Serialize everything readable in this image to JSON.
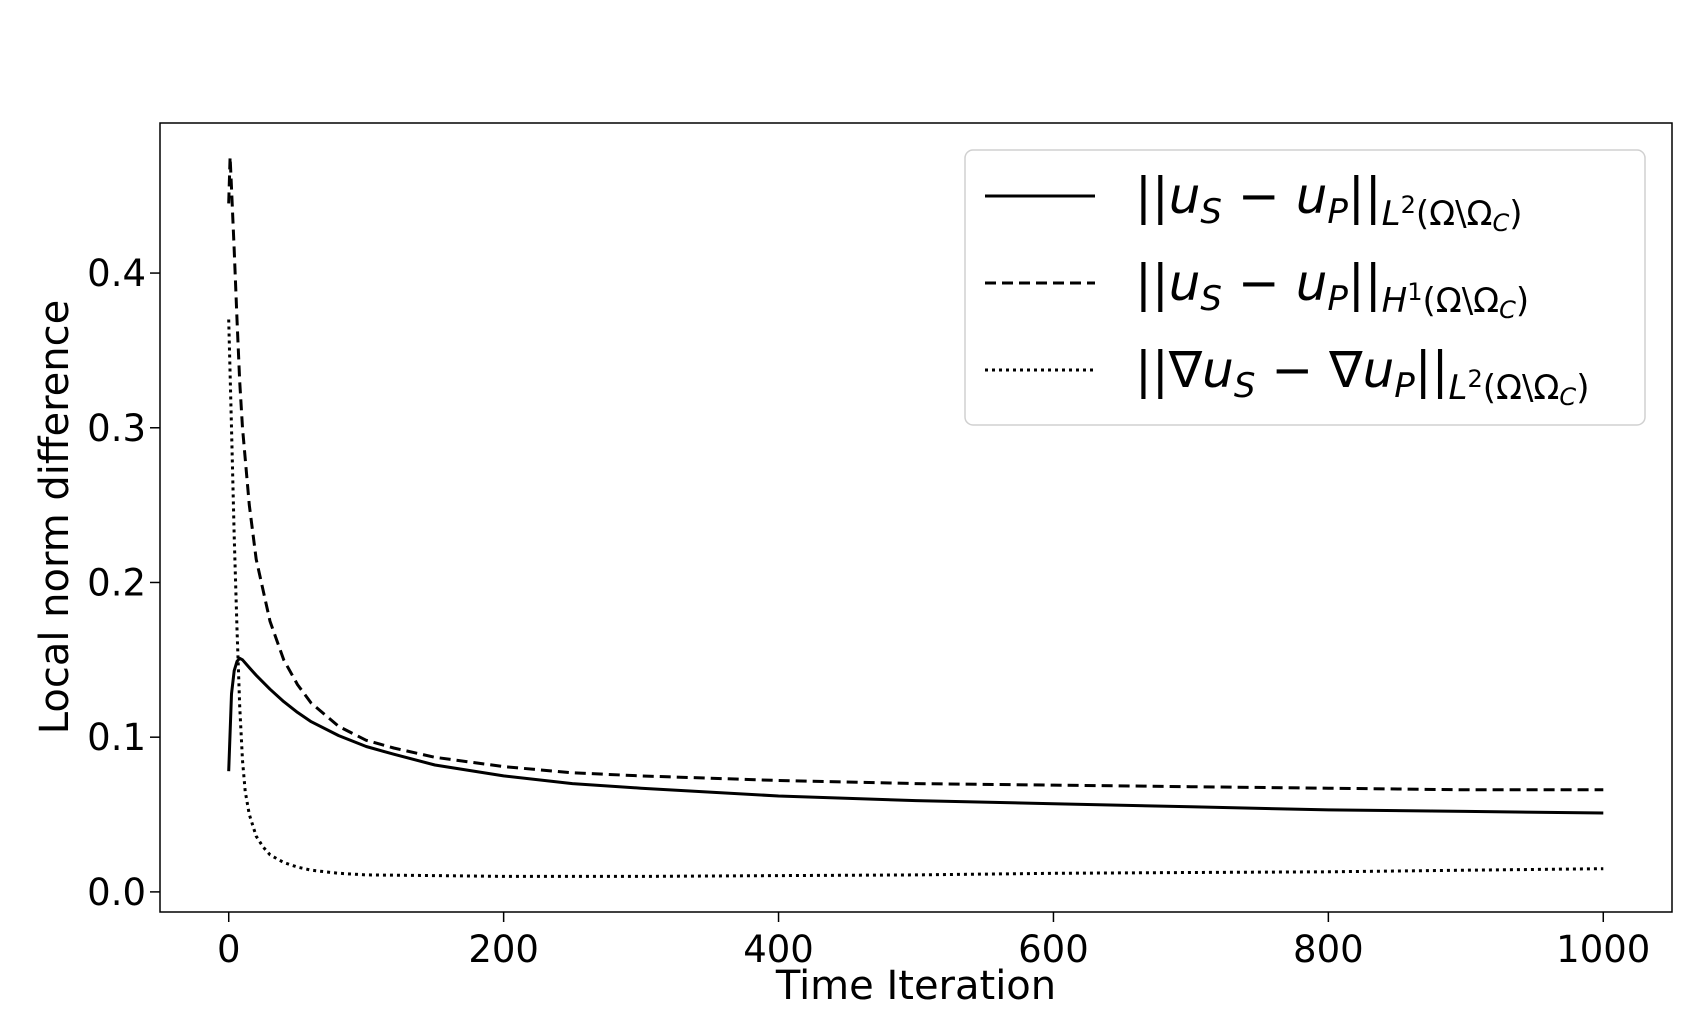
{
  "chart_data": {
    "type": "line",
    "title": "",
    "xlabel": "Time Iteration",
    "ylabel": "Local norm difference",
    "xlim": [
      -50,
      1050
    ],
    "ylim": [
      -0.013,
      0.497
    ],
    "xticks": [
      0,
      200,
      400,
      600,
      800,
      1000
    ],
    "yticks": [
      0.0,
      0.1,
      0.2,
      0.3,
      0.4
    ],
    "xtick_labels": [
      "0",
      "200",
      "400",
      "600",
      "800",
      "1000"
    ],
    "ytick_labels": [
      "0.0",
      "0.1",
      "0.2",
      "0.3",
      "0.4"
    ],
    "grid": false,
    "legend_position": "top-right",
    "series": [
      {
        "name": "||u_S − u_P||_{L²(Ω∖Ω_C)}",
        "style": "solid",
        "color": "#000000",
        "x": [
          0,
          2,
          4,
          6,
          8,
          10,
          15,
          20,
          30,
          40,
          50,
          60,
          80,
          100,
          120,
          150,
          200,
          250,
          300,
          400,
          500,
          600,
          700,
          800,
          900,
          1000
        ],
        "y": [
          0.078,
          0.128,
          0.143,
          0.149,
          0.151,
          0.15,
          0.145,
          0.14,
          0.131,
          0.123,
          0.116,
          0.11,
          0.101,
          0.094,
          0.089,
          0.082,
          0.075,
          0.07,
          0.067,
          0.062,
          0.059,
          0.057,
          0.055,
          0.053,
          0.052,
          0.051
        ]
      },
      {
        "name": "||u_S − u_P||_{H¹(Ω∖Ω_C)}",
        "style": "dashed",
        "color": "#000000",
        "x": [
          0,
          1,
          2,
          4,
          6,
          8,
          10,
          15,
          20,
          30,
          40,
          50,
          60,
          80,
          100,
          120,
          150,
          200,
          250,
          300,
          400,
          500,
          600,
          700,
          800,
          900,
          1000
        ],
        "y": [
          0.445,
          0.475,
          0.455,
          0.415,
          0.37,
          0.33,
          0.3,
          0.25,
          0.215,
          0.175,
          0.15,
          0.134,
          0.122,
          0.107,
          0.098,
          0.093,
          0.087,
          0.081,
          0.077,
          0.075,
          0.072,
          0.07,
          0.069,
          0.068,
          0.067,
          0.066,
          0.066
        ]
      },
      {
        "name": "||∇u_S − ∇u_P||_{L²(Ω∖Ω_C)}",
        "style": "dotted",
        "color": "#000000",
        "x": [
          0,
          2,
          4,
          6,
          8,
          10,
          12,
          15,
          20,
          25,
          30,
          40,
          50,
          60,
          80,
          100,
          150,
          200,
          300,
          400,
          500,
          600,
          700,
          800,
          900,
          1000
        ],
        "y": [
          0.37,
          0.3,
          0.23,
          0.17,
          0.12,
          0.085,
          0.065,
          0.05,
          0.036,
          0.029,
          0.024,
          0.019,
          0.016,
          0.014,
          0.012,
          0.011,
          0.0105,
          0.01,
          0.01,
          0.0105,
          0.011,
          0.012,
          0.0125,
          0.013,
          0.014,
          0.015
        ]
      }
    ]
  }
}
